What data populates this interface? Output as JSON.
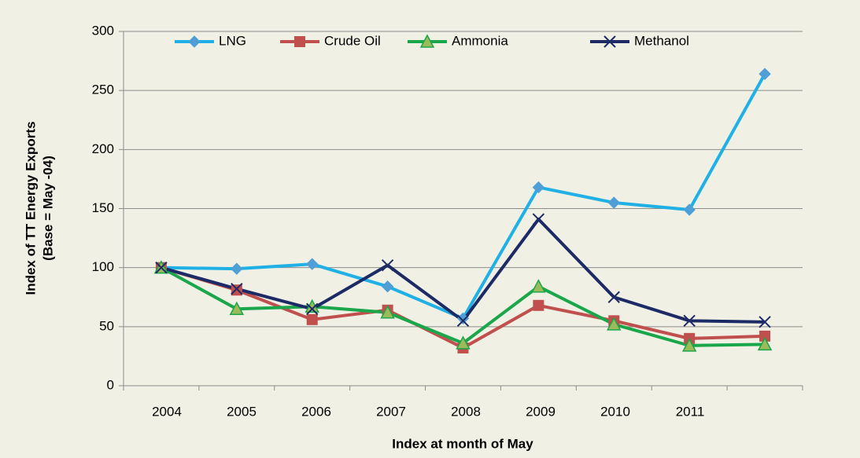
{
  "chart_data": {
    "type": "line",
    "ylabel": [
      "Index of TT Energy Exports",
      "(Base = May -04)"
    ],
    "xlabel": "Index at month of May",
    "categories": [
      "2004",
      "2005",
      "2006",
      "2007",
      "2008",
      "2009",
      "2010",
      "2011",
      null
    ],
    "series": [
      {
        "name": "LNG",
        "color": "#1fb0e6",
        "marker": "diamond",
        "marker_color": "#4f9fd6",
        "values": [
          100,
          99,
          103,
          84,
          57,
          168,
          155,
          149,
          264
        ]
      },
      {
        "name": "Crude Oil",
        "color": "#c0504d",
        "marker": "square",
        "marker_color": "#c0504d",
        "values": [
          100,
          81,
          56,
          64,
          32,
          68,
          55,
          40,
          42
        ]
      },
      {
        "name": "Ammonia",
        "color": "#1aa64a",
        "marker": "triangle",
        "marker_color": "#9bbb59",
        "values": [
          100,
          65,
          67,
          62,
          36,
          84,
          52,
          34,
          35
        ]
      },
      {
        "name": "Methanol",
        "color": "#1c2a66",
        "marker": "x",
        "marker_color": "#1c2a66",
        "values": [
          100,
          82,
          65,
          102,
          55,
          141,
          75,
          55,
          54
        ]
      }
    ],
    "ylim": [
      0,
      300
    ],
    "yticks": [
      0,
      50,
      100,
      150,
      200,
      250,
      300
    ],
    "grid": true,
    "legend": "top"
  }
}
